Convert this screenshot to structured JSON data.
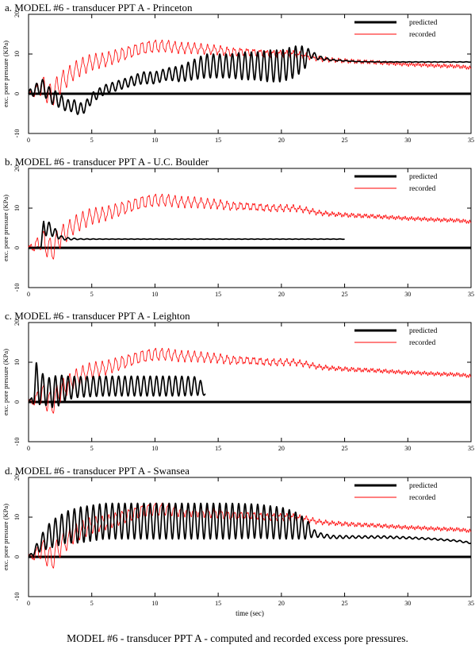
{
  "caption": "MODEL #6 - transducer PPT A - computed and recorded excess pore pressures.",
  "chart_data": [
    {
      "type": "line",
      "title": "a. MODEL #6 - transducer PPT A - Princeton",
      "xlabel": "",
      "ylabel": "exc. pore pressure (KPa)",
      "xlim": [
        0,
        35
      ],
      "ylim": [
        -10,
        20
      ],
      "xticks": [
        "0",
        "5",
        "10",
        "15",
        "20",
        "25",
        "30",
        "35"
      ],
      "yticks": [
        "-10",
        "0",
        "10",
        "20"
      ],
      "zero_line": true,
      "legend": "top-right",
      "series": [
        {
          "name": "predicted",
          "color": "#000000",
          "x": [
            0,
            0.6,
            1.0,
            1.6,
            2.0,
            2.6,
            3.0,
            3.6,
            4.0,
            4.6,
            5.0,
            6.0,
            7.0,
            8.0,
            9.0,
            10.0,
            11.0,
            12.0,
            13.0,
            14.0,
            15.0,
            16.0,
            17.0,
            18.0,
            19.0,
            20.0,
            21.0,
            21.8,
            22.3,
            23.0,
            24.0,
            25.0,
            26.0,
            28.0,
            30.0,
            32.0,
            35.0
          ],
          "y": [
            0,
            1,
            2,
            0,
            -1,
            -2,
            -3,
            -3,
            -4,
            -3,
            -1,
            1,
            2,
            3,
            4,
            4,
            5,
            5,
            6,
            7,
            7,
            7,
            7,
            7,
            7,
            7,
            8,
            9,
            10,
            9,
            8.5,
            8.3,
            8.1,
            8.0,
            8.0,
            8.0,
            8.0
          ],
          "osc": [
            0.8,
            1.5,
            2.0,
            1.8,
            2.0,
            1.6,
            1.5,
            1.5,
            1.5,
            1.5,
            1.2,
            1.2,
            1.2,
            1.2,
            1.5,
            1.5,
            1.5,
            2.0,
            2.5,
            3.0,
            3.0,
            3.0,
            3.5,
            3.5,
            4.0,
            4.0,
            4.0,
            3.0,
            1.0,
            0.5,
            0.2,
            0.1,
            0.05,
            0.05,
            0.05,
            0.05,
            0.05
          ]
        },
        {
          "name": "recorded",
          "color": "#ff0000",
          "x": [
            0,
            0.6,
            1.0,
            1.4,
            1.8,
            2.2,
            2.6,
            3.0,
            3.5,
            4.0,
            5.0,
            6.0,
            7.0,
            8.0,
            9.0,
            10.0,
            11.0,
            12.0,
            13.0,
            14.0,
            15.0,
            16.0,
            17.0,
            18.0,
            19.0,
            20.0,
            21.0,
            22.0,
            23.0,
            24.0,
            25.0,
            26.0,
            27.0,
            28.0,
            29.0,
            30.0,
            31.0,
            32.0,
            33.0,
            34.0,
            35.0
          ],
          "y": [
            0,
            0.5,
            2.0,
            1.0,
            -1.0,
            1.5,
            3.0,
            4.0,
            5.5,
            6.5,
            8.0,
            8.5,
            9.5,
            10.5,
            11.5,
            12.0,
            12.0,
            11.5,
            11.5,
            11.2,
            11.0,
            10.5,
            10.5,
            10.3,
            10.0,
            10.0,
            10.0,
            9.5,
            8.8,
            8.5,
            8.3,
            8.1,
            8.0,
            7.8,
            7.6,
            7.4,
            7.3,
            7.1,
            7.0,
            6.9,
            6.5
          ],
          "osc": [
            0.3,
            1.5,
            2.5,
            3.0,
            3.0,
            2.5,
            2.5,
            2.2,
            2.0,
            2.0,
            1.8,
            1.6,
            1.6,
            1.5,
            1.5,
            1.5,
            1.3,
            1.2,
            1.1,
            1.0,
            1.0,
            0.9,
            0.8,
            0.8,
            0.7,
            0.7,
            0.6,
            0.5,
            0.4,
            0.3,
            0.3,
            0.3,
            0.25,
            0.25,
            0.2,
            0.2,
            0.2,
            0.2,
            0.2,
            0.2,
            0.2
          ]
        }
      ]
    },
    {
      "type": "line",
      "title": "b. MODEL #6 - transducer PPT A - U.C. Boulder",
      "xlabel": "",
      "ylabel": "exc. pore pressure (KPa)",
      "xlim": [
        0,
        35
      ],
      "ylim": [
        -10,
        20
      ],
      "xticks": [
        "0",
        "5",
        "10",
        "15",
        "20",
        "25",
        "30",
        "35"
      ],
      "yticks": [
        "-10",
        "0",
        "10",
        "20"
      ],
      "zero_line": true,
      "legend": "top-right",
      "series": [
        {
          "name": "predicted",
          "color": "#000000",
          "x": [
            0,
            0.6,
            1.0,
            1.2,
            1.4,
            1.8,
            2.2,
            2.6,
            3.0,
            4.0,
            6.0,
            10.0,
            15.0,
            20.0,
            25.0
          ],
          "y": [
            0,
            0,
            0.5,
            5.5,
            5.0,
            4.5,
            3.5,
            2.5,
            2.3,
            2.2,
            2.2,
            2.2,
            2.2,
            2.2,
            2.2
          ],
          "osc": [
            0,
            0,
            0.5,
            2.0,
            2.0,
            1.5,
            1.0,
            0.5,
            0.3,
            0.1,
            0.05,
            0.05,
            0.05,
            0.05,
            0.05
          ]
        },
        {
          "name": "recorded",
          "color": "#ff0000",
          "x": [
            0,
            0.6,
            1.0,
            1.4,
            1.8,
            2.2,
            2.6,
            3.0,
            3.5,
            4.0,
            5.0,
            6.0,
            7.0,
            8.0,
            9.0,
            10.0,
            11.0,
            12.0,
            13.0,
            14.0,
            15.0,
            16.0,
            17.0,
            18.0,
            19.0,
            20.0,
            21.0,
            22.0,
            23.0,
            24.0,
            25.0,
            26.0,
            27.0,
            28.0,
            29.0,
            30.0,
            31.0,
            32.0,
            33.0,
            34.0,
            35.0
          ],
          "y": [
            0,
            0.5,
            2.0,
            1.0,
            -1.0,
            1.5,
            3.0,
            4.0,
            5.5,
            6.5,
            8.0,
            8.5,
            9.5,
            10.5,
            11.5,
            12.0,
            12.0,
            11.5,
            11.5,
            11.2,
            11.0,
            10.5,
            10.5,
            10.3,
            10.0,
            10.0,
            10.0,
            9.5,
            8.8,
            8.5,
            8.3,
            8.1,
            8.0,
            7.8,
            7.6,
            7.4,
            7.3,
            7.1,
            7.0,
            6.9,
            6.5
          ],
          "osc": [
            0.3,
            1.5,
            2.5,
            3.0,
            3.0,
            2.5,
            2.5,
            2.2,
            2.0,
            2.0,
            1.8,
            1.6,
            1.6,
            1.5,
            1.5,
            1.5,
            1.3,
            1.2,
            1.1,
            1.0,
            1.0,
            0.9,
            0.8,
            0.8,
            0.7,
            0.7,
            0.6,
            0.5,
            0.4,
            0.3,
            0.3,
            0.3,
            0.25,
            0.25,
            0.2,
            0.2,
            0.2,
            0.2,
            0.2,
            0.2,
            0.2
          ]
        }
      ]
    },
    {
      "type": "line",
      "title": "c. MODEL #6 - transducer PPT A - Leighton",
      "xlabel": "",
      "ylabel": "exc. pore pressure (KPa)",
      "xlim": [
        0,
        35
      ],
      "ylim": [
        -10,
        20
      ],
      "xticks": [
        "0",
        "5",
        "10",
        "15",
        "20",
        "25",
        "30",
        "35"
      ],
      "yticks": [
        "-10",
        "0",
        "10",
        "20"
      ],
      "zero_line": true,
      "legend": "top-right",
      "series": [
        {
          "name": "predicted",
          "color": "#000000",
          "x": [
            0,
            0.2,
            0.6,
            1.0,
            1.5,
            2.0,
            2.5,
            3.0,
            4.0,
            6.0,
            8.0,
            10.0,
            12.0,
            13.5,
            14.0
          ],
          "y": [
            0,
            0.5,
            4.5,
            3.5,
            2.5,
            2.5,
            3.0,
            3.5,
            3.8,
            4.0,
            4.0,
            4.0,
            4.0,
            4.0,
            2.0
          ],
          "osc": [
            0,
            0.5,
            5.5,
            4.0,
            3.5,
            4.0,
            3.8,
            3.0,
            2.6,
            2.5,
            2.5,
            2.5,
            2.5,
            2.3,
            0.3
          ]
        },
        {
          "name": "recorded",
          "color": "#ff0000",
          "x": [
            0,
            0.6,
            1.0,
            1.4,
            1.8,
            2.2,
            2.6,
            3.0,
            3.5,
            4.0,
            5.0,
            6.0,
            7.0,
            8.0,
            9.0,
            10.0,
            11.0,
            12.0,
            13.0,
            14.0,
            15.0,
            16.0,
            17.0,
            18.0,
            19.0,
            20.0,
            21.0,
            22.0,
            23.0,
            24.0,
            25.0,
            26.0,
            27.0,
            28.0,
            29.0,
            30.0,
            31.0,
            32.0,
            33.0,
            34.0,
            35.0
          ],
          "y": [
            0,
            0.5,
            2.0,
            1.0,
            -1.0,
            1.5,
            3.0,
            4.0,
            5.5,
            6.5,
            8.0,
            8.5,
            9.5,
            10.5,
            11.5,
            12.0,
            12.0,
            11.5,
            11.5,
            11.2,
            11.0,
            10.5,
            10.5,
            10.3,
            10.0,
            10.0,
            10.0,
            9.5,
            8.8,
            8.5,
            8.3,
            8.1,
            8.0,
            7.8,
            7.6,
            7.4,
            7.3,
            7.1,
            7.0,
            6.9,
            6.5
          ],
          "osc": [
            0.3,
            1.5,
            2.5,
            3.0,
            3.0,
            2.5,
            2.5,
            2.2,
            2.0,
            2.0,
            1.8,
            1.6,
            1.6,
            1.5,
            1.5,
            1.5,
            1.3,
            1.2,
            1.1,
            1.0,
            1.0,
            0.9,
            0.8,
            0.8,
            0.7,
            0.7,
            0.6,
            0.5,
            0.4,
            0.3,
            0.3,
            0.3,
            0.25,
            0.25,
            0.2,
            0.2,
            0.2,
            0.2,
            0.2,
            0.2,
            0.2
          ]
        }
      ]
    },
    {
      "type": "line",
      "title": "d. MODEL #6 - transducer PPT A - Swansea",
      "xlabel": "time (sec)",
      "ylabel": "exc. pore pressure (KPa)",
      "xlim": [
        0,
        35
      ],
      "ylim": [
        -10,
        20
      ],
      "xticks": [
        "0",
        "5",
        "10",
        "15",
        "20",
        "25",
        "30",
        "35"
      ],
      "yticks": [
        "-10",
        "0",
        "10",
        "20"
      ],
      "zero_line": true,
      "legend": "top-right",
      "series": [
        {
          "name": "predicted",
          "color": "#000000",
          "x": [
            0,
            0.5,
            1.0,
            1.5,
            2.0,
            3.0,
            4.0,
            5.0,
            6.0,
            8.0,
            10.0,
            12.0,
            14.0,
            16.0,
            18.0,
            20.0,
            21.0,
            22.0,
            22.5,
            23.0,
            24.0,
            26.0,
            28.0,
            30.0,
            32.0,
            34.0,
            35.0
          ],
          "y": [
            0,
            1.5,
            3.5,
            5.0,
            6.0,
            7.5,
            8.0,
            8.5,
            9.0,
            9.0,
            9.0,
            9.0,
            9.0,
            9.0,
            9.0,
            8.5,
            8.0,
            7.0,
            6.0,
            5.5,
            5.0,
            5.0,
            5.0,
            4.8,
            4.5,
            4.0,
            3.5
          ],
          "osc": [
            0,
            1.0,
            2.0,
            3.0,
            3.5,
            4.0,
            4.5,
            4.5,
            4.5,
            4.5,
            4.5,
            4.5,
            4.5,
            4.5,
            4.3,
            4.0,
            3.5,
            2.5,
            1.0,
            0.6,
            0.4,
            0.3,
            0.3,
            0.25,
            0.2,
            0.2,
            0.2
          ]
        },
        {
          "name": "recorded",
          "color": "#ff0000",
          "x": [
            0,
            0.6,
            1.0,
            1.4,
            1.8,
            2.2,
            2.6,
            3.0,
            3.5,
            4.0,
            5.0,
            6.0,
            7.0,
            8.0,
            9.0,
            10.0,
            11.0,
            12.0,
            13.0,
            14.0,
            15.0,
            16.0,
            17.0,
            18.0,
            19.0,
            20.0,
            21.0,
            22.0,
            23.0,
            24.0,
            25.0,
            26.0,
            27.0,
            28.0,
            29.0,
            30.0,
            31.0,
            32.0,
            33.0,
            34.0,
            35.0
          ],
          "y": [
            0,
            0.5,
            2.0,
            1.0,
            -1.0,
            1.5,
            3.0,
            4.0,
            5.5,
            6.5,
            8.0,
            8.5,
            9.5,
            10.5,
            11.5,
            12.0,
            12.0,
            11.5,
            11.5,
            11.2,
            11.0,
            10.5,
            10.5,
            10.3,
            10.0,
            10.0,
            10.0,
            9.5,
            8.8,
            8.5,
            8.3,
            8.1,
            8.0,
            7.8,
            7.6,
            7.4,
            7.3,
            7.1,
            7.0,
            6.9,
            6.5
          ],
          "osc": [
            0.3,
            1.5,
            2.5,
            3.0,
            3.0,
            2.5,
            2.5,
            2.2,
            2.0,
            2.0,
            1.8,
            1.6,
            1.6,
            1.5,
            1.5,
            1.5,
            1.3,
            1.2,
            1.1,
            1.0,
            1.0,
            0.9,
            0.8,
            0.8,
            0.7,
            0.7,
            0.6,
            0.5,
            0.4,
            0.3,
            0.3,
            0.3,
            0.25,
            0.25,
            0.2,
            0.2,
            0.2,
            0.2,
            0.2,
            0.2,
            0.2
          ]
        }
      ]
    }
  ]
}
